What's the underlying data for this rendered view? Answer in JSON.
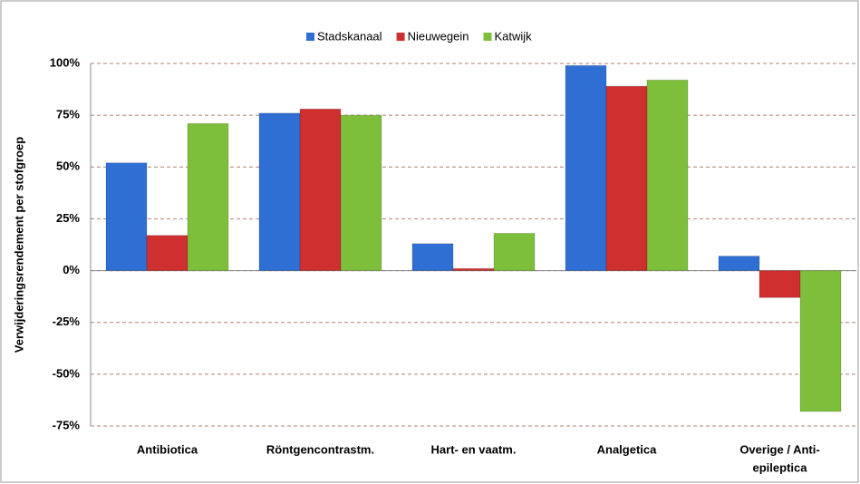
{
  "chart_data": {
    "type": "bar",
    "y_label": "Verwijderingsrendement per stofgroep",
    "categories": [
      "Antibiotica",
      "Röntgencontrastm.",
      "Hart- en vaatm.",
      "Analgetica",
      [
        "Overige / Anti-",
        "epileptica"
      ]
    ],
    "series": [
      {
        "name": "Stadskanaal",
        "color": "#2f6fd3",
        "values": [
          52,
          76,
          13,
          99,
          7
        ]
      },
      {
        "name": "Nieuwegein",
        "color": "#cf2f2f",
        "values": [
          17,
          78,
          1,
          89,
          -13
        ]
      },
      {
        "name": "Katwijk",
        "color": "#7dbf3a",
        "values": [
          71,
          75,
          18,
          92,
          -68
        ]
      }
    ],
    "ylim": [
      -75,
      100
    ],
    "yticks": [
      {
        "value": -75,
        "label": "-75%"
      },
      {
        "value": -50,
        "label": "-50%"
      },
      {
        "value": -25,
        "label": "-25%"
      },
      {
        "value": 0,
        "label": "0%"
      },
      {
        "value": 25,
        "label": "25%"
      },
      {
        "value": 50,
        "label": "50%"
      },
      {
        "value": 75,
        "label": "75%"
      },
      {
        "value": 100,
        "label": "100%"
      }
    ],
    "grid": true,
    "legend": "top"
  }
}
